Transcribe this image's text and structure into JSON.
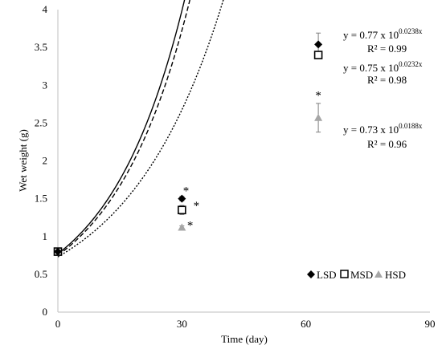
{
  "chart_data": {
    "type": "scatter",
    "xlabel": "Time (day)",
    "ylabel": "Wet weight (g)",
    "xlim": [
      0,
      90
    ],
    "ylim": [
      0,
      4
    ],
    "xticks": [
      "0",
      "30",
      "60",
      "90"
    ],
    "yticks": [
      "0",
      "0.5",
      "1",
      "1.5",
      "2",
      "2.5",
      "3",
      "3.5",
      "4"
    ],
    "grid": false,
    "legend_position": "bottom-right",
    "series": [
      {
        "name": "LSD",
        "marker": "diamond-filled",
        "color": "#000000",
        "points": [
          {
            "x": 0,
            "y": 0.8,
            "err": 0.02
          },
          {
            "x": 30,
            "y": 1.5,
            "err": 0.03
          },
          {
            "x": 63,
            "y": 3.54,
            "err": 0.15
          }
        ],
        "fit": {
          "a": 0.77,
          "b": 0.0238,
          "line": "solid",
          "eq_base": "y = 0.77 x 10",
          "eq_exp": "0.0238x",
          "r2": "R² = 0.99"
        }
      },
      {
        "name": "MSD",
        "marker": "square-open",
        "color": "#000000",
        "points": [
          {
            "x": 0,
            "y": 0.8,
            "err": 0.02
          },
          {
            "x": 30,
            "y": 1.35,
            "err": 0.06
          },
          {
            "x": 63,
            "y": 3.4,
            "err": 0.03
          }
        ],
        "fit": {
          "a": 0.75,
          "b": 0.0232,
          "line": "dashed",
          "eq_base": "y = 0.75 x 10",
          "eq_exp": "0.0232x",
          "r2": "R² = 0.98"
        }
      },
      {
        "name": "HSD",
        "marker": "triangle-filled",
        "color": "#a6a6a6",
        "points": [
          {
            "x": 0,
            "y": 0.8,
            "err": 0.02
          },
          {
            "x": 30,
            "y": 1.12,
            "err": 0.02
          },
          {
            "x": 63,
            "y": 2.57,
            "err": 0.19
          }
        ],
        "fit": {
          "a": 0.73,
          "b": 0.0188,
          "line": "dotted",
          "eq_base": "y = 0.73 x 10",
          "eq_exp": "0.0188x",
          "r2": "R² = 0.96"
        }
      }
    ],
    "annotations": [
      {
        "text": "*",
        "x": 31,
        "y": 1.62
      },
      {
        "text": "*",
        "x": 33.5,
        "y": 1.42
      },
      {
        "text": "*",
        "x": 32,
        "y": 1.16
      },
      {
        "text": "*",
        "x": 63,
        "y": 2.88
      }
    ]
  }
}
